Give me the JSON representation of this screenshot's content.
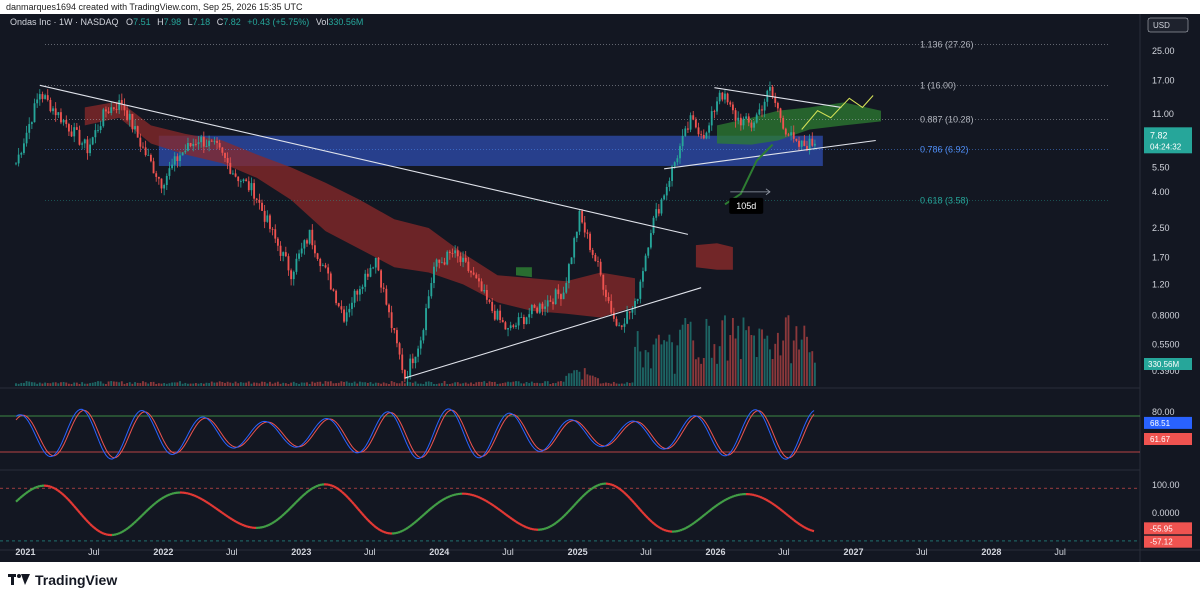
{
  "header": {
    "attribution": "danmarques1694 created with TradingView.com, Sep 25, 2026 15:35 UTC"
  },
  "legend": {
    "symbol": "Ondas Inc · 1W · NASDAQ",
    "o_label": "O",
    "o_value": "7.51",
    "h_label": "H",
    "h_value": "7.98",
    "l_label": "L",
    "l_value": "7.18",
    "c_label": "C",
    "c_value": "7.82",
    "change": "+0.43 (+5.75%)",
    "vol_label": "Vol",
    "vol_value": "330.56M"
  },
  "currency": "USD",
  "footer": {
    "brand": "TradingView"
  },
  "colors": {
    "background": "#131722",
    "up": "#26a69a",
    "down": "#ef5350",
    "fib_text": "#b2b5be",
    "fib_786": "#4f8ef7",
    "fib_618": "#26a69a",
    "blue_zone": "#2f4eb0",
    "cloud_bear": "#8b2a2a",
    "cloud_bull": "#2e7d32",
    "stoch_k": "#2962ff",
    "stoch_d": "#ef5350",
    "osc_bull": "#43a047",
    "osc_bear": "#e53935"
  },
  "chart_data": [
    {
      "type": "candlestick",
      "scale": "log",
      "ylim": [
        0.32,
        32
      ],
      "x_range": [
        "2020-12-07",
        "2028-12-01"
      ],
      "x_ticks": [
        {
          "label": "2021",
          "date": "2021-01-01"
        },
        {
          "label": "Jul",
          "date": "2021-07-01"
        },
        {
          "label": "2022",
          "date": "2022-01-01"
        },
        {
          "label": "Jul",
          "date": "2022-07-01"
        },
        {
          "label": "2023",
          "date": "2023-01-01"
        },
        {
          "label": "Jul",
          "date": "2023-07-01"
        },
        {
          "label": "2024",
          "date": "2024-01-01"
        },
        {
          "label": "Jul",
          "date": "2024-07-01"
        },
        {
          "label": "2025",
          "date": "2025-01-01"
        },
        {
          "label": "Jul",
          "date": "2025-07-01"
        },
        {
          "label": "2026",
          "date": "2026-01-01"
        },
        {
          "label": "Jul",
          "date": "2026-07-01"
        },
        {
          "label": "2027",
          "date": "2027-01-01"
        },
        {
          "label": "Jul",
          "date": "2027-07-01"
        },
        {
          "label": "2028",
          "date": "2028-01-01"
        },
        {
          "label": "Jul",
          "date": "2028-07-01"
        }
      ],
      "y_ticks": [
        "25.00",
        "17.00",
        "11.00",
        "5.50",
        "4.00",
        "2.50",
        "1.70",
        "1.20",
        "0.8000",
        "0.5500",
        "0.3900"
      ],
      "y_tick_values": [
        25,
        17,
        11,
        5.5,
        4,
        2.5,
        1.7,
        1.2,
        0.8,
        0.55,
        0.39
      ],
      "price_path": [
        [
          "2020-12-07",
          5.8
        ],
        [
          "2021-02-08",
          14.5
        ],
        [
          "2021-04-05",
          10.5
        ],
        [
          "2021-06-14",
          7.0
        ],
        [
          "2021-08-02",
          11.5
        ],
        [
          "2021-09-13",
          12.8
        ],
        [
          "2021-11-08",
          7.0
        ],
        [
          "2021-12-27",
          4.5
        ],
        [
          "2022-02-14",
          6.5
        ],
        [
          "2022-04-04",
          8.0
        ],
        [
          "2022-05-23",
          7.0
        ],
        [
          "2022-07-11",
          5.0
        ],
        [
          "2022-08-29",
          4.0
        ],
        [
          "2022-10-17",
          2.3
        ],
        [
          "2022-12-05",
          1.4
        ],
        [
          "2023-01-23",
          2.3
        ],
        [
          "2023-03-13",
          1.3
        ],
        [
          "2023-04-24",
          0.8
        ],
        [
          "2023-06-05",
          1.2
        ],
        [
          "2023-07-17",
          1.7
        ],
        [
          "2023-08-21",
          0.8
        ],
        [
          "2023-10-02",
          0.36
        ],
        [
          "2023-11-13",
          0.6
        ],
        [
          "2023-12-18",
          1.5
        ],
        [
          "2024-02-05",
          1.8
        ],
        [
          "2024-03-25",
          1.4
        ],
        [
          "2024-05-13",
          0.9
        ],
        [
          "2024-07-01",
          0.65
        ],
        [
          "2024-08-19",
          0.8
        ],
        [
          "2024-10-07",
          0.95
        ],
        [
          "2024-11-25",
          1.1
        ],
        [
          "2025-01-06",
          2.9
        ],
        [
          "2025-02-24",
          1.5
        ],
        [
          "2025-04-14",
          0.7
        ],
        [
          "2025-06-02",
          0.9
        ],
        [
          "2025-07-14",
          2.5
        ],
        [
          "2025-08-11",
          3.6
        ],
        [
          "2025-09-22",
          6.5
        ],
        [
          "2025-10-27",
          10.0
        ],
        [
          "2025-12-08",
          8.3
        ],
        [
          "2026-01-12",
          15.0
        ],
        [
          "2026-02-23",
          10.5
        ],
        [
          "2026-04-06",
          9.5
        ],
        [
          "2026-05-25",
          15.0
        ],
        [
          "2026-07-06",
          9.0
        ],
        [
          "2026-08-03",
          7.2
        ],
        [
          "2026-09-14",
          7.5
        ],
        [
          "2026-09-21",
          7.82
        ]
      ],
      "fib_levels": [
        {
          "label": "1.136 (27.26)",
          "price": 27.26
        },
        {
          "label": "1 (16.00)",
          "price": 16.0
        },
        {
          "label": "0.887 (10.28)",
          "price": 10.28
        },
        {
          "label": "0.786 (6.92)",
          "price": 6.92
        },
        {
          "label": "0.618 (3.58)",
          "price": 3.58
        }
      ],
      "zone": {
        "from": "2021-12-20",
        "to": "2026-10-12",
        "low": 5.6,
        "high": 8.3
      },
      "trendlines": [
        {
          "from": [
            "2021-02-08",
            16.0
          ],
          "to": [
            "2025-10-20",
            2.3
          ]
        },
        {
          "from": [
            "2023-10-02",
            0.355
          ],
          "to": [
            "2025-11-24",
            1.15
          ]
        },
        {
          "from": [
            "2025-08-18",
            5.4
          ],
          "to": [
            "2027-03-01",
            7.8
          ]
        },
        {
          "from": [
            "2025-12-29",
            15.5
          ],
          "to": [
            "2026-11-30",
            12.0
          ]
        }
      ],
      "cloud_bear": [
        [
          "2021-06-07",
          12.0,
          9.5
        ],
        [
          "2021-09-06",
          13.0,
          10.5
        ],
        [
          "2021-11-29",
          9.5,
          7.5
        ],
        [
          "2022-02-28",
          8.5,
          6.5
        ],
        [
          "2022-06-06",
          7.8,
          5.8
        ],
        [
          "2022-09-05",
          6.5,
          4.8
        ],
        [
          "2022-12-05",
          5.5,
          3.6
        ],
        [
          "2023-03-06",
          4.5,
          2.4
        ],
        [
          "2023-06-05",
          3.6,
          1.9
        ],
        [
          "2023-09-04",
          2.8,
          1.5
        ],
        [
          "2023-12-04",
          2.5,
          1.4
        ],
        [
          "2024-03-04",
          1.8,
          1.2
        ],
        [
          "2024-06-03",
          1.35,
          0.95
        ],
        [
          "2024-09-02",
          1.3,
          0.85
        ],
        [
          "2024-12-02",
          1.25,
          0.82
        ],
        [
          "2025-03-03",
          1.4,
          0.78
        ],
        [
          "2025-06-02",
          1.3,
          0.9
        ]
      ],
      "cloud_bull_early": [
        [
          "2024-07-22",
          1.5,
          1.35
        ],
        [
          "2024-09-02",
          1.5,
          1.32
        ]
      ],
      "cloud_future_bear": [
        [
          "2025-11-10",
          2.0,
          1.5
        ],
        [
          "2026-01-05",
          2.05,
          1.45
        ],
        [
          "2026-02-16",
          1.95,
          1.45
        ]
      ],
      "cloud_bull_late": [
        [
          "2026-01-05",
          9.5,
          7.5
        ],
        [
          "2026-04-06",
          10.5,
          7.4
        ],
        [
          "2026-06-15",
          11.5,
          7.8
        ],
        [
          "2026-09-07",
          12.0,
          9.0
        ],
        [
          "2026-12-07",
          12.8,
          9.5
        ],
        [
          "2027-03-15",
          11.5,
          10.0
        ]
      ],
      "projection_line": [
        [
          "2026-08-17",
          9.0
        ],
        [
          "2026-09-28",
          11.5
        ],
        [
          "2026-11-02",
          10.5
        ],
        [
          "2026-12-21",
          13.5
        ],
        [
          "2027-01-25",
          12.0
        ],
        [
          "2027-02-22",
          14.0
        ]
      ],
      "ichimoku_lead": [
        [
          "2026-01-26",
          3.4
        ],
        [
          "2026-03-09",
          3.9
        ],
        [
          "2026-04-20",
          6.0
        ],
        [
          "2026-06-01",
          7.4
        ]
      ],
      "range_label": "105d",
      "range_dates": [
        "2026-02-09",
        "2026-05-25"
      ],
      "volume_series_label": "330.56M"
    },
    {
      "type": "line",
      "name": "stochastic",
      "ylim": [
        0,
        100
      ],
      "levels": [
        80,
        20
      ],
      "y_ticks": [
        "80.00"
      ],
      "last_values": [
        "68.51",
        "61.67"
      ]
    },
    {
      "type": "area",
      "name": "oscillator",
      "ylim": [
        -100,
        100
      ],
      "y_ticks": [
        "100.00",
        "0.0000"
      ],
      "last_values": [
        "-55.95",
        "-57.12"
      ]
    }
  ]
}
